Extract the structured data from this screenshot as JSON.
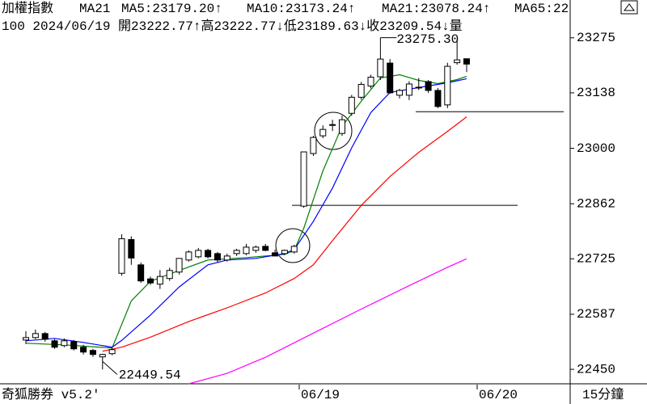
{
  "chart_data": {
    "type": "candlestick",
    "title": "加權指數",
    "indicator_label": "MA21",
    "ma_legend": [
      {
        "text": "MA5:23179.20↑",
        "color": "#008000"
      },
      {
        "text": "MA10:23173.24↑",
        "color": "#0000ff"
      },
      {
        "text": "MA21:23078.24↑",
        "color": "#ff0000"
      },
      {
        "text": "MA65:22",
        "color": "#ff00ff"
      }
    ],
    "info_line": "100 2024/06/19 開23222.77↑高23222.77↓低23189.63↓收23209.54↓量",
    "footer_left": "奇狐勝券 v5.2'",
    "x_labels": [
      "06/19",
      "06/20"
    ],
    "footer_right": "15分鐘",
    "ylim": [
      22414,
      23369
    ],
    "yticks": [
      23275,
      23138,
      23000,
      22862,
      22725,
      22587,
      22450
    ],
    "up_color": "#ffffff",
    "down_color": "#000000",
    "ohlc": [
      [
        22523,
        22545,
        22513,
        22529
      ],
      [
        22529,
        22549,
        22525,
        22539
      ],
      [
        22539,
        22543,
        22519,
        22525
      ],
      [
        22521,
        22525,
        22501,
        22505
      ],
      [
        22509,
        22527,
        22505,
        22521
      ],
      [
        22519,
        22523,
        22497,
        22501
      ],
      [
        22505,
        22511,
        22487,
        22493
      ],
      [
        22497,
        22501,
        22481,
        22487
      ],
      [
        22481,
        22489,
        22449.54,
        22487
      ],
      [
        22489,
        22503,
        22485,
        22499
      ],
      [
        22689,
        22786,
        22683,
        22775
      ],
      [
        22773,
        22781,
        22710,
        22727
      ],
      [
        22710,
        22716,
        22665,
        22670
      ],
      [
        22675,
        22681,
        22660,
        22665
      ],
      [
        22662,
        22697,
        22650,
        22681
      ],
      [
        22676,
        22703,
        22670,
        22696
      ],
      [
        22692,
        22726,
        22686,
        22726
      ],
      [
        22722,
        22746,
        22718,
        22742
      ],
      [
        22730,
        22752,
        22726,
        22746
      ],
      [
        22746,
        22750,
        22726,
        22730
      ],
      [
        22738,
        22742,
        22716,
        22722
      ],
      [
        22722,
        22738,
        22718,
        22732
      ],
      [
        22738,
        22750,
        22732,
        22746
      ],
      [
        22738,
        22762,
        22734,
        22754
      ],
      [
        22746,
        22758,
        22740,
        22754
      ],
      [
        22756,
        22762,
        22744,
        22746
      ],
      [
        22740,
        22748,
        22732,
        22732
      ],
      [
        22738,
        22748,
        22734,
        22746
      ],
      [
        22742,
        22760,
        22738,
        22756
      ],
      [
        22856,
        22991,
        22852,
        22991
      ],
      [
        22987,
        23031,
        22981,
        23027
      ],
      [
        23031,
        23057,
        23025,
        23047
      ],
      [
        23057,
        23071,
        23043,
        23059
      ],
      [
        23037,
        23081,
        23031,
        23071
      ],
      [
        23087,
        23133,
        23081,
        23127
      ],
      [
        23127,
        23165,
        23121,
        23159
      ],
      [
        23155,
        23183,
        23149,
        23177
      ],
      [
        23178,
        23275.3,
        23170,
        23222
      ],
      [
        23212,
        23222,
        23136,
        23138
      ],
      [
        23132,
        23148,
        23124,
        23144
      ],
      [
        23132,
        23167,
        23120,
        23160
      ],
      [
        23150,
        23175,
        23145,
        23152
      ],
      [
        23166,
        23170,
        23138,
        23144
      ],
      [
        23144,
        23150,
        23100,
        23104
      ],
      [
        23108,
        23213,
        23100,
        23204
      ],
      [
        23213,
        23270,
        23208,
        23220
      ],
      [
        23222.77,
        23222.77,
        23189.63,
        23209.54
      ]
    ],
    "ma_series": [
      {
        "color": "#008000",
        "x": [
          0,
          4,
          9,
          11,
          13,
          16,
          19,
          23,
          27,
          28,
          29,
          31,
          33,
          35,
          37,
          39,
          41,
          43,
          45,
          46
        ],
        "values": [
          22515,
          22511,
          22503,
          22620,
          22669,
          22696,
          22722,
          22728,
          22736,
          22746,
          22801,
          22944,
          23055,
          23117,
          23175,
          23183,
          23169,
          23161,
          23171,
          23179.2
        ]
      },
      {
        "color": "#0000ff",
        "x": [
          0,
          3,
          6,
          9,
          10,
          13,
          16,
          19,
          21,
          24,
          27,
          28,
          30,
          32,
          34,
          36,
          38,
          40,
          42,
          44,
          46
        ],
        "values": [
          22521,
          22527,
          22517,
          22505,
          22522,
          22585,
          22655,
          22710,
          22722,
          22726,
          22738,
          22748,
          22818,
          22901,
          23001,
          23089,
          23139,
          23147,
          23155,
          23163,
          23173.24
        ]
      },
      {
        "color": "#ff0000",
        "x": [
          8,
          10,
          13,
          17,
          21,
          25,
          28,
          30,
          32,
          35,
          38,
          41,
          44,
          46
        ],
        "values": [
          22495,
          22505,
          22530,
          22569,
          22603,
          22640,
          22676,
          22710,
          22770,
          22858,
          22930,
          22990,
          23042,
          23078.24
        ]
      },
      {
        "color": "#ff00ff",
        "x": [
          17,
          21,
          25,
          30,
          35,
          40,
          44,
          46
        ],
        "values": [
          22414,
          22440,
          22480,
          22540,
          22600,
          22658,
          22704,
          22725
        ]
      }
    ],
    "annotations": [
      {
        "value": 23275.3,
        "label": "23275.30"
      },
      22449.54
    ],
    "hlines": [
      23091,
      22858
    ]
  }
}
